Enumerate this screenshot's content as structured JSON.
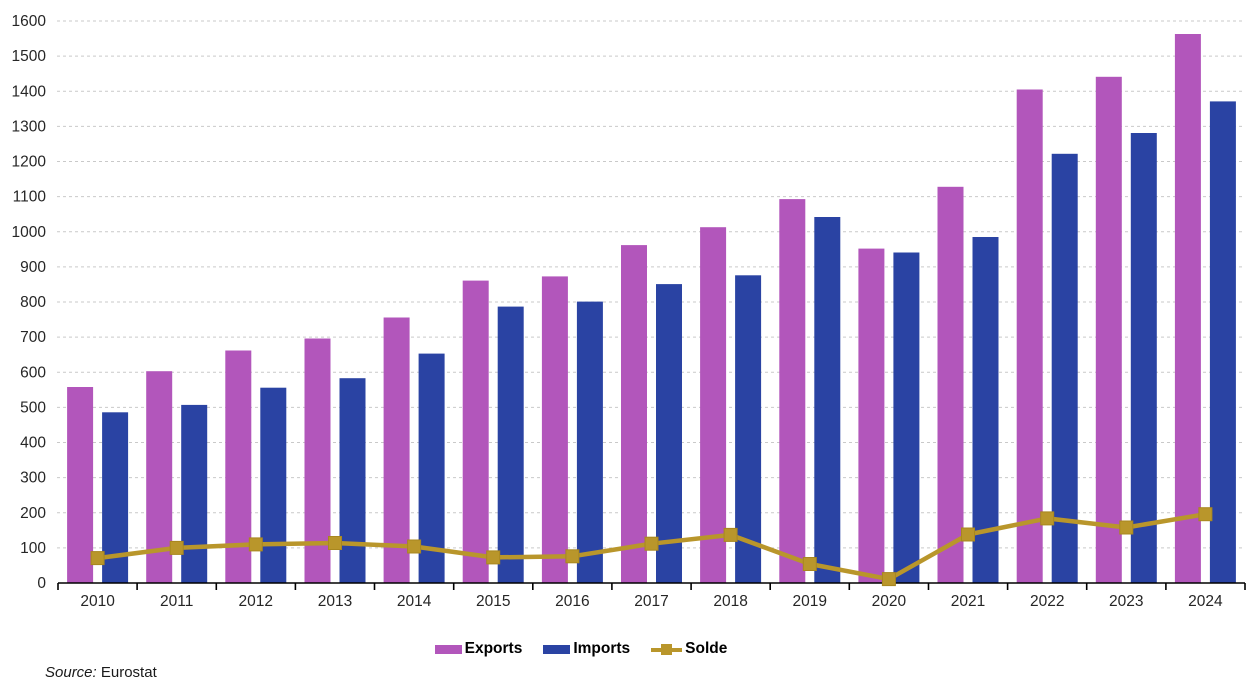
{
  "chart_data": {
    "type": "bar",
    "title": "",
    "xlabel": "",
    "ylabel": "",
    "categories": [
      "2010",
      "2011",
      "2012",
      "2013",
      "2014",
      "2015",
      "2016",
      "2017",
      "2018",
      "2019",
      "2020",
      "2021",
      "2022",
      "2023",
      "2024"
    ],
    "series": [
      {
        "name": "Exports",
        "type": "bar",
        "color": "#b256bb",
        "values": [
          558,
          603,
          662,
          696,
          756,
          861,
          873,
          962,
          1013,
          1093,
          952,
          1128,
          1405,
          1441,
          1563
        ]
      },
      {
        "name": "Imports",
        "type": "bar",
        "color": "#2a43a3",
        "values": [
          486,
          507,
          556,
          583,
          653,
          787,
          801,
          851,
          876,
          1042,
          941,
          985,
          1222,
          1281,
          1371
        ]
      },
      {
        "name": "Solde",
        "type": "line",
        "color": "#b9962b",
        "values": [
          71,
          100,
          110,
          114,
          104,
          73,
          76,
          112,
          137,
          54,
          11,
          138,
          184,
          158,
          196
        ]
      }
    ],
    "ylim": [
      0,
      1600
    ],
    "ytick_step": 100,
    "ytick_labels": [
      "0",
      "100",
      "200",
      "300",
      "400",
      "500",
      "600",
      "700",
      "800",
      "900",
      "1000",
      "1100",
      "1200",
      "1300",
      "1400",
      "1500",
      "1600"
    ],
    "grid": "horizontal-dashed",
    "gridline_color": "#c9c9c9",
    "axis_color": "#000000",
    "tick_label_color": "#262626",
    "legend_position": "bottom"
  },
  "source": {
    "prefix": "Source:",
    "text": "Eurostat"
  }
}
